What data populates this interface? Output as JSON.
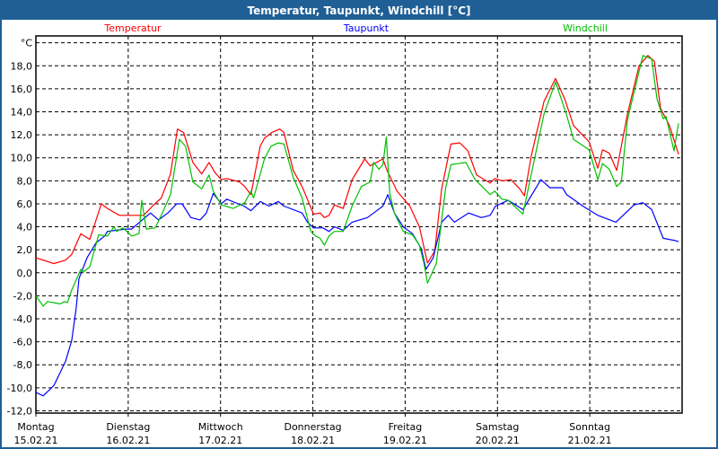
{
  "window": {
    "title": "Temperatur, Taupunkt, Windchill [°C]"
  },
  "chart_data": {
    "type": "line",
    "title": "Temperatur, Taupunkt, Windchill [°C]",
    "xlabel": "",
    "ylabel": "°C",
    "x_unit": "hours since 15.02.21 00:00",
    "xlim": [
      0,
      168
    ],
    "ylim": [
      -12.2,
      20.6
    ],
    "grid": true,
    "legend_placement": "top",
    "y_ticks": [
      -12,
      -10,
      -8,
      -6,
      -4,
      -2,
      0,
      2,
      4,
      6,
      8,
      10,
      12,
      14,
      16,
      18
    ],
    "y_tick_labels": [
      "-12,0",
      "-10,0",
      "-8,0",
      "-6,0",
      "-4,0",
      "-2,0",
      "0,0",
      "2,0",
      "4,0",
      "6,0",
      "8,0",
      "10,0",
      "12,0",
      "14,0",
      "16,0",
      "18,0"
    ],
    "x_ticks": [
      0,
      24,
      48,
      72,
      96,
      120,
      144
    ],
    "x_tick_days": [
      "Montag",
      "Dienstag",
      "Mittwoch",
      "Donnerstag",
      "Freitag",
      "Samstag",
      "Sonntag"
    ],
    "x_tick_dates": [
      "15.02.21",
      "16.02.21",
      "17.02.21",
      "18.02.21",
      "19.02.21",
      "20.02.21",
      "21.02.21"
    ],
    "series": [
      {
        "name": "Temperatur",
        "color": "#ff0000",
        "points": [
          [
            0,
            1.3
          ],
          [
            4.7,
            0.8
          ],
          [
            7.7,
            1.1
          ],
          [
            9.3,
            1.6
          ],
          [
            11.7,
            3.4
          ],
          [
            14,
            2.9
          ],
          [
            17,
            6.0
          ],
          [
            18.6,
            5.6
          ],
          [
            21.7,
            5.0
          ],
          [
            28,
            5.0
          ],
          [
            30.3,
            5.8
          ],
          [
            32.6,
            6.5
          ],
          [
            35,
            8.6
          ],
          [
            36.8,
            12.5
          ],
          [
            38.4,
            12.2
          ],
          [
            40.8,
            9.6
          ],
          [
            43.1,
            8.6
          ],
          [
            45,
            9.6
          ],
          [
            46.6,
            8.7
          ],
          [
            48.2,
            8.1
          ],
          [
            49.6,
            8.2
          ],
          [
            52.9,
            7.9
          ],
          [
            54.3,
            7.5
          ],
          [
            55.9,
            6.8
          ],
          [
            58.3,
            11.0
          ],
          [
            59.4,
            11.7
          ],
          [
            61.3,
            12.2
          ],
          [
            63.4,
            12.5
          ],
          [
            64.5,
            12.2
          ],
          [
            66.9,
            8.9
          ],
          [
            69.2,
            7.5
          ],
          [
            72.2,
            5.1
          ],
          [
            73.9,
            5.2
          ],
          [
            75,
            4.8
          ],
          [
            76.2,
            5.0
          ],
          [
            77.6,
            5.9
          ],
          [
            79.9,
            5.6
          ],
          [
            82.2,
            8.1
          ],
          [
            85.5,
            9.9
          ],
          [
            86.9,
            9.3
          ],
          [
            90.2,
            9.9
          ],
          [
            91.3,
            8.9
          ],
          [
            93.9,
            7.1
          ],
          [
            97.2,
            5.8
          ],
          [
            99.7,
            4.0
          ],
          [
            101.8,
            0.85
          ],
          [
            103.7,
            1.9
          ],
          [
            105.5,
            7.3
          ],
          [
            107.9,
            11.2
          ],
          [
            110.2,
            11.3
          ],
          [
            112.3,
            10.6
          ],
          [
            114.6,
            8.5
          ],
          [
            118.1,
            7.8
          ],
          [
            119.3,
            8.2
          ],
          [
            121.2,
            8.0
          ],
          [
            123.5,
            8.1
          ],
          [
            125.8,
            7.3
          ],
          [
            127,
            6.7
          ],
          [
            128.8,
            10.2
          ],
          [
            132.1,
            14.9
          ],
          [
            135.1,
            16.9
          ],
          [
            137.5,
            15.1
          ],
          [
            139.8,
            12.8
          ],
          [
            143.8,
            11.4
          ],
          [
            146.1,
            9.1
          ],
          [
            147.3,
            10.7
          ],
          [
            149.1,
            10.4
          ],
          [
            151,
            8.9
          ],
          [
            153.8,
            13.8
          ],
          [
            156.8,
            18.0
          ],
          [
            159.1,
            18.9
          ],
          [
            160.8,
            18.4
          ],
          [
            162.4,
            14.3
          ],
          [
            164.7,
            12.8
          ],
          [
            167.1,
            10.3
          ]
        ]
      },
      {
        "name": "Taupunkt",
        "color": "#0000ff",
        "points": [
          [
            0,
            -10.4
          ],
          [
            1.9,
            -10.7
          ],
          [
            4.7,
            -9.8
          ],
          [
            7.7,
            -7.7
          ],
          [
            9.3,
            -5.9
          ],
          [
            10.5,
            -3.0
          ],
          [
            11.2,
            -0.5
          ],
          [
            13.3,
            1.3
          ],
          [
            15.6,
            2.6
          ],
          [
            17.9,
            3.2
          ],
          [
            18.6,
            3.6
          ],
          [
            23.3,
            3.8
          ],
          [
            24.9,
            3.8
          ],
          [
            28,
            4.7
          ],
          [
            29.8,
            5.2
          ],
          [
            31.9,
            4.6
          ],
          [
            34.3,
            5.2
          ],
          [
            36.6,
            6.0
          ],
          [
            38,
            6.0
          ],
          [
            40.3,
            4.8
          ],
          [
            42.7,
            4.6
          ],
          [
            44.3,
            5.2
          ],
          [
            46.1,
            6.9
          ],
          [
            48.2,
            6.0
          ],
          [
            49.6,
            6.4
          ],
          [
            54.1,
            5.8
          ],
          [
            55.9,
            5.4
          ],
          [
            58.3,
            6.2
          ],
          [
            60.6,
            5.8
          ],
          [
            63,
            6.2
          ],
          [
            64.5,
            5.8
          ],
          [
            69.2,
            5.2
          ],
          [
            70.6,
            4.4
          ],
          [
            72.2,
            3.9
          ],
          [
            74.6,
            3.9
          ],
          [
            76.2,
            3.6
          ],
          [
            77.6,
            4.0
          ],
          [
            79.9,
            3.7
          ],
          [
            82.2,
            4.4
          ],
          [
            86.2,
            4.8
          ],
          [
            87.8,
            5.2
          ],
          [
            90.2,
            5.8
          ],
          [
            91.5,
            6.8
          ],
          [
            93.2,
            5.2
          ],
          [
            95.5,
            4.0
          ],
          [
            97.9,
            3.4
          ],
          [
            100.2,
            2.1
          ],
          [
            101.4,
            0.3
          ],
          [
            103.3,
            1.3
          ],
          [
            105.5,
            4.4
          ],
          [
            107.2,
            5.0
          ],
          [
            108.8,
            4.4
          ],
          [
            112.5,
            5.2
          ],
          [
            115.8,
            4.8
          ],
          [
            118.1,
            5.0
          ],
          [
            119.5,
            5.8
          ],
          [
            122.8,
            6.3
          ],
          [
            126.6,
            5.5
          ],
          [
            131.3,
            8.1
          ],
          [
            133.6,
            7.4
          ],
          [
            136.9,
            7.4
          ],
          [
            138,
            6.8
          ],
          [
            142.2,
            5.8
          ],
          [
            146.1,
            5.0
          ],
          [
            150.8,
            4.4
          ],
          [
            155.5,
            5.9
          ],
          [
            157.8,
            6.1
          ],
          [
            160.1,
            5.5
          ],
          [
            163.1,
            3.0
          ],
          [
            166.2,
            2.8
          ],
          [
            167.1,
            2.7
          ]
        ]
      },
      {
        "name": "Windchill",
        "color": "#00c000",
        "points": [
          [
            0,
            -2.0
          ],
          [
            1.9,
            -2.9
          ],
          [
            3,
            -2.5
          ],
          [
            6.3,
            -2.7
          ],
          [
            7.5,
            -2.5
          ],
          [
            8.2,
            -2.6
          ],
          [
            9.3,
            -1.5
          ],
          [
            11.7,
            0.3
          ],
          [
            12.4,
            0.1
          ],
          [
            14,
            0.5
          ],
          [
            16.3,
            3.3
          ],
          [
            18.6,
            3.2
          ],
          [
            20.3,
            4.0
          ],
          [
            21,
            3.6
          ],
          [
            22.6,
            3.9
          ],
          [
            24.9,
            3.2
          ],
          [
            26.8,
            3.4
          ],
          [
            27.5,
            6.3
          ],
          [
            28.7,
            3.8
          ],
          [
            31,
            3.9
          ],
          [
            32.6,
            5.0
          ],
          [
            35,
            6.8
          ],
          [
            37.3,
            11.6
          ],
          [
            38.9,
            11.0
          ],
          [
            40.8,
            7.9
          ],
          [
            43.1,
            7.3
          ],
          [
            45,
            8.5
          ],
          [
            46.1,
            7.1
          ],
          [
            48.2,
            5.9
          ],
          [
            51.3,
            5.6
          ],
          [
            54.3,
            6.1
          ],
          [
            55.9,
            7.1
          ],
          [
            56.6,
            6.5
          ],
          [
            59.4,
            9.9
          ],
          [
            61.1,
            11.0
          ],
          [
            63,
            11.3
          ],
          [
            64.5,
            11.2
          ],
          [
            66.9,
            8.3
          ],
          [
            69.2,
            6.5
          ],
          [
            71.5,
            3.6
          ],
          [
            72.7,
            3.2
          ],
          [
            73.9,
            3.0
          ],
          [
            75,
            2.4
          ],
          [
            76.2,
            3.2
          ],
          [
            77.6,
            3.6
          ],
          [
            79.9,
            3.6
          ],
          [
            82.2,
            5.8
          ],
          [
            84.6,
            7.5
          ],
          [
            86.9,
            7.9
          ],
          [
            87.8,
            9.6
          ],
          [
            89.2,
            9.0
          ],
          [
            90.2,
            9.4
          ],
          [
            91.1,
            11.8
          ],
          [
            92,
            6.9
          ],
          [
            93.2,
            5.2
          ],
          [
            95.5,
            3.6
          ],
          [
            97.9,
            3.3
          ],
          [
            99.7,
            2.4
          ],
          [
            100.9,
            0.8
          ],
          [
            101.8,
            -0.9
          ],
          [
            104.1,
            0.8
          ],
          [
            106.5,
            7.3
          ],
          [
            107.9,
            9.4
          ],
          [
            111.8,
            9.6
          ],
          [
            114.2,
            8.1
          ],
          [
            118.1,
            6.8
          ],
          [
            119.3,
            7.1
          ],
          [
            121.2,
            6.4
          ],
          [
            122.8,
            6.3
          ],
          [
            126.6,
            5.1
          ],
          [
            128.8,
            8.6
          ],
          [
            132.1,
            13.8
          ],
          [
            135.1,
            16.6
          ],
          [
            137.9,
            13.8
          ],
          [
            139.8,
            11.6
          ],
          [
            143.8,
            10.7
          ],
          [
            146.1,
            8.1
          ],
          [
            147.3,
            9.5
          ],
          [
            149.1,
            9.0
          ],
          [
            151,
            7.5
          ],
          [
            152.2,
            7.9
          ],
          [
            153.8,
            13.3
          ],
          [
            157.8,
            18.9
          ],
          [
            160.1,
            18.6
          ],
          [
            161.5,
            15.1
          ],
          [
            163.1,
            13.4
          ],
          [
            163.8,
            13.6
          ],
          [
            165.9,
            10.6
          ],
          [
            166.6,
            12.1
          ],
          [
            167.1,
            13.0
          ]
        ]
      }
    ]
  }
}
